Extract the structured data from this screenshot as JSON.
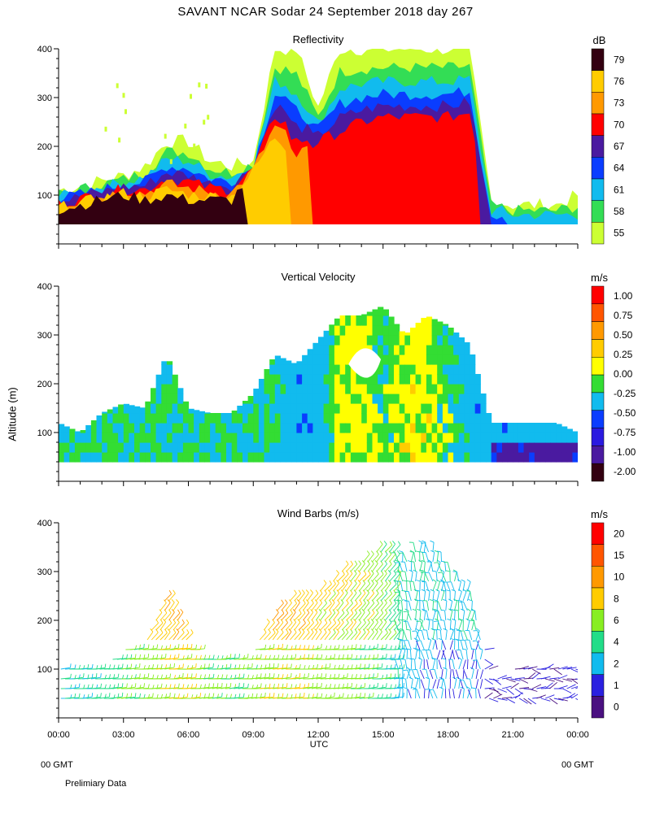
{
  "title": "SAVANT   NCAR Sodar   24 September 2018   day 267",
  "xaxis": {
    "ticks": [
      "00:00",
      "03:00",
      "06:00",
      "09:00",
      "12:00",
      "15:00",
      "18:00",
      "21:00",
      "00:00"
    ],
    "tick_hours": [
      0,
      3,
      6,
      9,
      12,
      15,
      18,
      21,
      24
    ],
    "label": "UTC",
    "left_note": "00 GMT",
    "right_note": "00 GMT"
  },
  "ylabel": "Altitude (m)",
  "footer": "Prelimiary Data",
  "colors": {
    "cb_reflectivity": [
      "#ccff33",
      "#33dd55",
      "#11bbee",
      "#0a3dff",
      "#4a1aa0",
      "#ff0000",
      "#ff9900",
      "#ffcc00",
      "#330011"
    ],
    "cb_velocity": [
      "#330011",
      "#4a1aa0",
      "#2a1ae0",
      "#0a3dff",
      "#11bbee",
      "#33dd33",
      "#ffff00",
      "#ffcc00",
      "#ff9900",
      "#ff5500",
      "#ff0000"
    ],
    "cb_wind": [
      "#4a1080",
      "#2a20e0",
      "#11bbee",
      "#22dd88",
      "#88ee22",
      "#ffcc00",
      "#ff9900",
      "#ff5500",
      "#ff0000"
    ]
  },
  "chart_data": [
    {
      "type": "heatmap",
      "title": "Reflectivity",
      "unit": "dB",
      "colorbar_labels": [
        "79",
        "76",
        "73",
        "70",
        "67",
        "64",
        "61",
        "58",
        "55"
      ],
      "colorbar_levels": [
        55,
        58,
        61,
        64,
        67,
        70,
        73,
        76,
        79
      ],
      "xlim": [
        0,
        24
      ],
      "ylim": [
        0,
        400
      ],
      "yticks": [
        100,
        200,
        300,
        400
      ],
      "x_hours": [
        0,
        1,
        2,
        3,
        4,
        5,
        6,
        7,
        8,
        9,
        10,
        11,
        12,
        13,
        14,
        15,
        16,
        17,
        18,
        19,
        20,
        21,
        22,
        23,
        24
      ],
      "echo_top_m": [
        110,
        120,
        130,
        140,
        160,
        210,
        210,
        170,
        160,
        170,
        400,
        400,
        280,
        400,
        400,
        400,
        400,
        400,
        400,
        400,
        90,
        80,
        80,
        80,
        100
      ],
      "base_layer_top_m": [
        70,
        80,
        90,
        100,
        90,
        100,
        90,
        90,
        90,
        150,
        220,
        180,
        210,
        230,
        250,
        260,
        260,
        260,
        260,
        270,
        60,
        60,
        60,
        60,
        60
      ],
      "max_dB_near_ground": [
        79,
        79,
        79,
        79,
        79,
        79,
        79,
        79,
        79,
        76,
        76,
        73,
        70,
        70,
        70,
        70,
        70,
        70,
        70,
        70,
        64,
        61,
        61,
        61,
        61
      ]
    },
    {
      "type": "heatmap",
      "title": "Vertical Velocity",
      "unit": "m/s",
      "colorbar_labels": [
        "1.00",
        "0.75",
        "0.50",
        "0.25",
        "0.00",
        "-0.25",
        "-0.50",
        "-0.75",
        "-1.00",
        "-2.00"
      ],
      "xlim": [
        0,
        24
      ],
      "ylim": [
        0,
        400
      ],
      "yticks": [
        100,
        200,
        300,
        400
      ],
      "x_hours": [
        0,
        1,
        2,
        3,
        4,
        5,
        6,
        7,
        8,
        9,
        10,
        11,
        12,
        13,
        14,
        15,
        16,
        17,
        18,
        19,
        20,
        21,
        22,
        23,
        24
      ],
      "data_top_m": [
        120,
        100,
        140,
        160,
        150,
        260,
        150,
        140,
        140,
        180,
        260,
        240,
        290,
        340,
        340,
        360,
        300,
        340,
        320,
        280,
        120,
        120,
        120,
        120,
        100
      ],
      "dominant_w_ms": [
        0.0,
        0.0,
        0.0,
        0.0,
        0.0,
        0.0,
        0.0,
        0.0,
        0.0,
        0.0,
        0.0,
        -0.25,
        -0.25,
        0.25,
        0.25,
        0.0,
        0.25,
        0.25,
        0.0,
        -0.25,
        -0.25,
        -0.25,
        -0.25,
        -0.25,
        -0.25
      ]
    },
    {
      "type": "scatter",
      "title": "Wind Barbs (m/s)",
      "unit": "m/s",
      "colorbar_labels": [
        "20",
        "15",
        "10",
        "8",
        "6",
        "4",
        "2",
        "1",
        "0"
      ],
      "xlim": [
        0,
        24
      ],
      "ylim": [
        0,
        400
      ],
      "yticks": [
        100,
        200,
        300,
        400
      ],
      "x_hours": [
        0,
        1,
        2,
        3,
        4,
        5,
        6,
        7,
        8,
        9,
        10,
        11,
        12,
        13,
        14,
        15,
        16,
        17,
        18,
        19,
        20,
        21,
        22,
        23,
        24
      ],
      "data_top_m": [
        120,
        110,
        110,
        140,
        160,
        260,
        150,
        120,
        120,
        140,
        220,
        250,
        260,
        300,
        320,
        350,
        330,
        360,
        310,
        260,
        90,
        100,
        110,
        110,
        100
      ],
      "speed_ms": [
        4,
        4,
        5,
        6,
        7,
        8,
        8,
        6,
        6,
        7,
        8,
        8,
        7,
        7,
        6,
        5,
        3,
        2,
        2,
        2,
        1,
        1,
        1,
        1,
        2
      ]
    }
  ]
}
